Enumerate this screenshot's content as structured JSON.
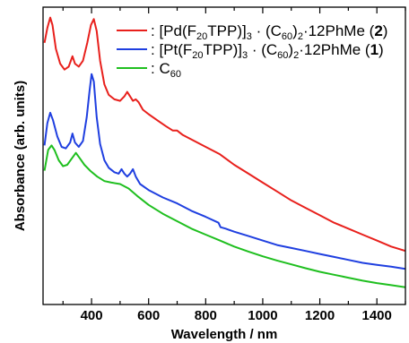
{
  "chart_data": {
    "type": "line",
    "xlabel": "Wavelength / nm",
    "ylabel": "Absorbance (arb. units)",
    "xlim": [
      230,
      1500
    ],
    "ylim": [
      0,
      1
    ],
    "x_ticks": [
      400,
      600,
      800,
      1000,
      1200,
      1400
    ],
    "x_tick_labels": [
      "400",
      "600",
      "800",
      "1000",
      "1200",
      "1400"
    ],
    "y_tick_labels": [],
    "grid": false,
    "legend_placement": "top-right",
    "legend": [
      {
        "prefix": ": [Pd(F",
        "sub1": "20",
        "mid1": "TPP)]",
        "sub2": "3",
        "mid2": " · (C",
        "sub3": "60",
        "mid3": ")",
        "sub4": "2",
        "suffix": "·12PhMe (",
        "bold": "2",
        "end": ")"
      },
      {
        "prefix": ": [Pt(F",
        "sub1": "20",
        "mid1": "TPP)]",
        "sub2": "3",
        "mid2": " · (C",
        "sub3": "60",
        "mid3": ")",
        "sub4": "2",
        "suffix": "·12PhMe (",
        "bold": "1",
        "end": ")"
      },
      {
        "prefix": ": C",
        "sub1": "60",
        "mid1": "",
        "sub2": "",
        "mid2": "",
        "sub3": "",
        "mid3": "",
        "sub4": "",
        "suffix": "",
        "bold": "",
        "end": ""
      }
    ],
    "series": [
      {
        "key": "pd",
        "color": "#e8201c",
        "points": [
          [
            235,
            0.88
          ],
          [
            245,
            0.93
          ],
          [
            255,
            0.965
          ],
          [
            263,
            0.94
          ],
          [
            275,
            0.86
          ],
          [
            290,
            0.81
          ],
          [
            305,
            0.79
          ],
          [
            320,
            0.8
          ],
          [
            333,
            0.835
          ],
          [
            342,
            0.81
          ],
          [
            355,
            0.8
          ],
          [
            370,
            0.82
          ],
          [
            385,
            0.88
          ],
          [
            398,
            0.94
          ],
          [
            408,
            0.96
          ],
          [
            418,
            0.92
          ],
          [
            430,
            0.82
          ],
          [
            445,
            0.74
          ],
          [
            460,
            0.705
          ],
          [
            480,
            0.69
          ],
          [
            500,
            0.685
          ],
          [
            515,
            0.7
          ],
          [
            525,
            0.715
          ],
          [
            535,
            0.7
          ],
          [
            545,
            0.685
          ],
          [
            555,
            0.69
          ],
          [
            565,
            0.68
          ],
          [
            580,
            0.655
          ],
          [
            600,
            0.64
          ],
          [
            630,
            0.62
          ],
          [
            660,
            0.6
          ],
          [
            685,
            0.585
          ],
          [
            700,
            0.585
          ],
          [
            720,
            0.57
          ],
          [
            760,
            0.55
          ],
          [
            800,
            0.53
          ],
          [
            850,
            0.505
          ],
          [
            900,
            0.47
          ],
          [
            950,
            0.44
          ],
          [
            1000,
            0.41
          ],
          [
            1050,
            0.38
          ],
          [
            1100,
            0.35
          ],
          [
            1150,
            0.325
          ],
          [
            1200,
            0.3
          ],
          [
            1250,
            0.275
          ],
          [
            1300,
            0.255
          ],
          [
            1350,
            0.235
          ],
          [
            1400,
            0.215
          ],
          [
            1450,
            0.195
          ],
          [
            1500,
            0.18
          ]
        ]
      },
      {
        "key": "pt",
        "color": "#1f3fe0",
        "points": [
          [
            235,
            0.535
          ],
          [
            245,
            0.61
          ],
          [
            255,
            0.645
          ],
          [
            265,
            0.62
          ],
          [
            280,
            0.565
          ],
          [
            295,
            0.53
          ],
          [
            310,
            0.525
          ],
          [
            325,
            0.545
          ],
          [
            333,
            0.575
          ],
          [
            342,
            0.545
          ],
          [
            355,
            0.53
          ],
          [
            370,
            0.55
          ],
          [
            383,
            0.63
          ],
          [
            393,
            0.72
          ],
          [
            400,
            0.775
          ],
          [
            408,
            0.75
          ],
          [
            418,
            0.63
          ],
          [
            430,
            0.54
          ],
          [
            445,
            0.485
          ],
          [
            460,
            0.46
          ],
          [
            480,
            0.445
          ],
          [
            495,
            0.44
          ],
          [
            505,
            0.455
          ],
          [
            515,
            0.44
          ],
          [
            525,
            0.43
          ],
          [
            535,
            0.44
          ],
          [
            545,
            0.455
          ],
          [
            555,
            0.43
          ],
          [
            570,
            0.405
          ],
          [
            600,
            0.385
          ],
          [
            650,
            0.36
          ],
          [
            700,
            0.34
          ],
          [
            750,
            0.315
          ],
          [
            800,
            0.295
          ],
          [
            845,
            0.275
          ],
          [
            852,
            0.26
          ],
          [
            870,
            0.255
          ],
          [
            900,
            0.245
          ],
          [
            950,
            0.23
          ],
          [
            1000,
            0.215
          ],
          [
            1050,
            0.2
          ],
          [
            1100,
            0.19
          ],
          [
            1150,
            0.18
          ],
          [
            1200,
            0.17
          ],
          [
            1250,
            0.16
          ],
          [
            1300,
            0.15
          ],
          [
            1350,
            0.14
          ],
          [
            1400,
            0.133
          ],
          [
            1450,
            0.127
          ],
          [
            1500,
            0.12
          ]
        ]
      },
      {
        "key": "c60",
        "color": "#1fbf1f",
        "points": [
          [
            235,
            0.45
          ],
          [
            248,
            0.52
          ],
          [
            260,
            0.535
          ],
          [
            270,
            0.52
          ],
          [
            285,
            0.485
          ],
          [
            300,
            0.465
          ],
          [
            315,
            0.47
          ],
          [
            330,
            0.49
          ],
          [
            345,
            0.51
          ],
          [
            360,
            0.49
          ],
          [
            375,
            0.47
          ],
          [
            395,
            0.45
          ],
          [
            420,
            0.43
          ],
          [
            445,
            0.415
          ],
          [
            470,
            0.41
          ],
          [
            500,
            0.405
          ],
          [
            530,
            0.39
          ],
          [
            560,
            0.365
          ],
          [
            600,
            0.335
          ],
          [
            650,
            0.305
          ],
          [
            700,
            0.28
          ],
          [
            750,
            0.255
          ],
          [
            800,
            0.235
          ],
          [
            850,
            0.215
          ],
          [
            900,
            0.195
          ],
          [
            950,
            0.178
          ],
          [
            1000,
            0.162
          ],
          [
            1050,
            0.148
          ],
          [
            1100,
            0.135
          ],
          [
            1150,
            0.122
          ],
          [
            1200,
            0.11
          ],
          [
            1250,
            0.1
          ],
          [
            1300,
            0.09
          ],
          [
            1350,
            0.08
          ],
          [
            1400,
            0.072
          ],
          [
            1450,
            0.065
          ],
          [
            1500,
            0.058
          ]
        ]
      }
    ]
  }
}
